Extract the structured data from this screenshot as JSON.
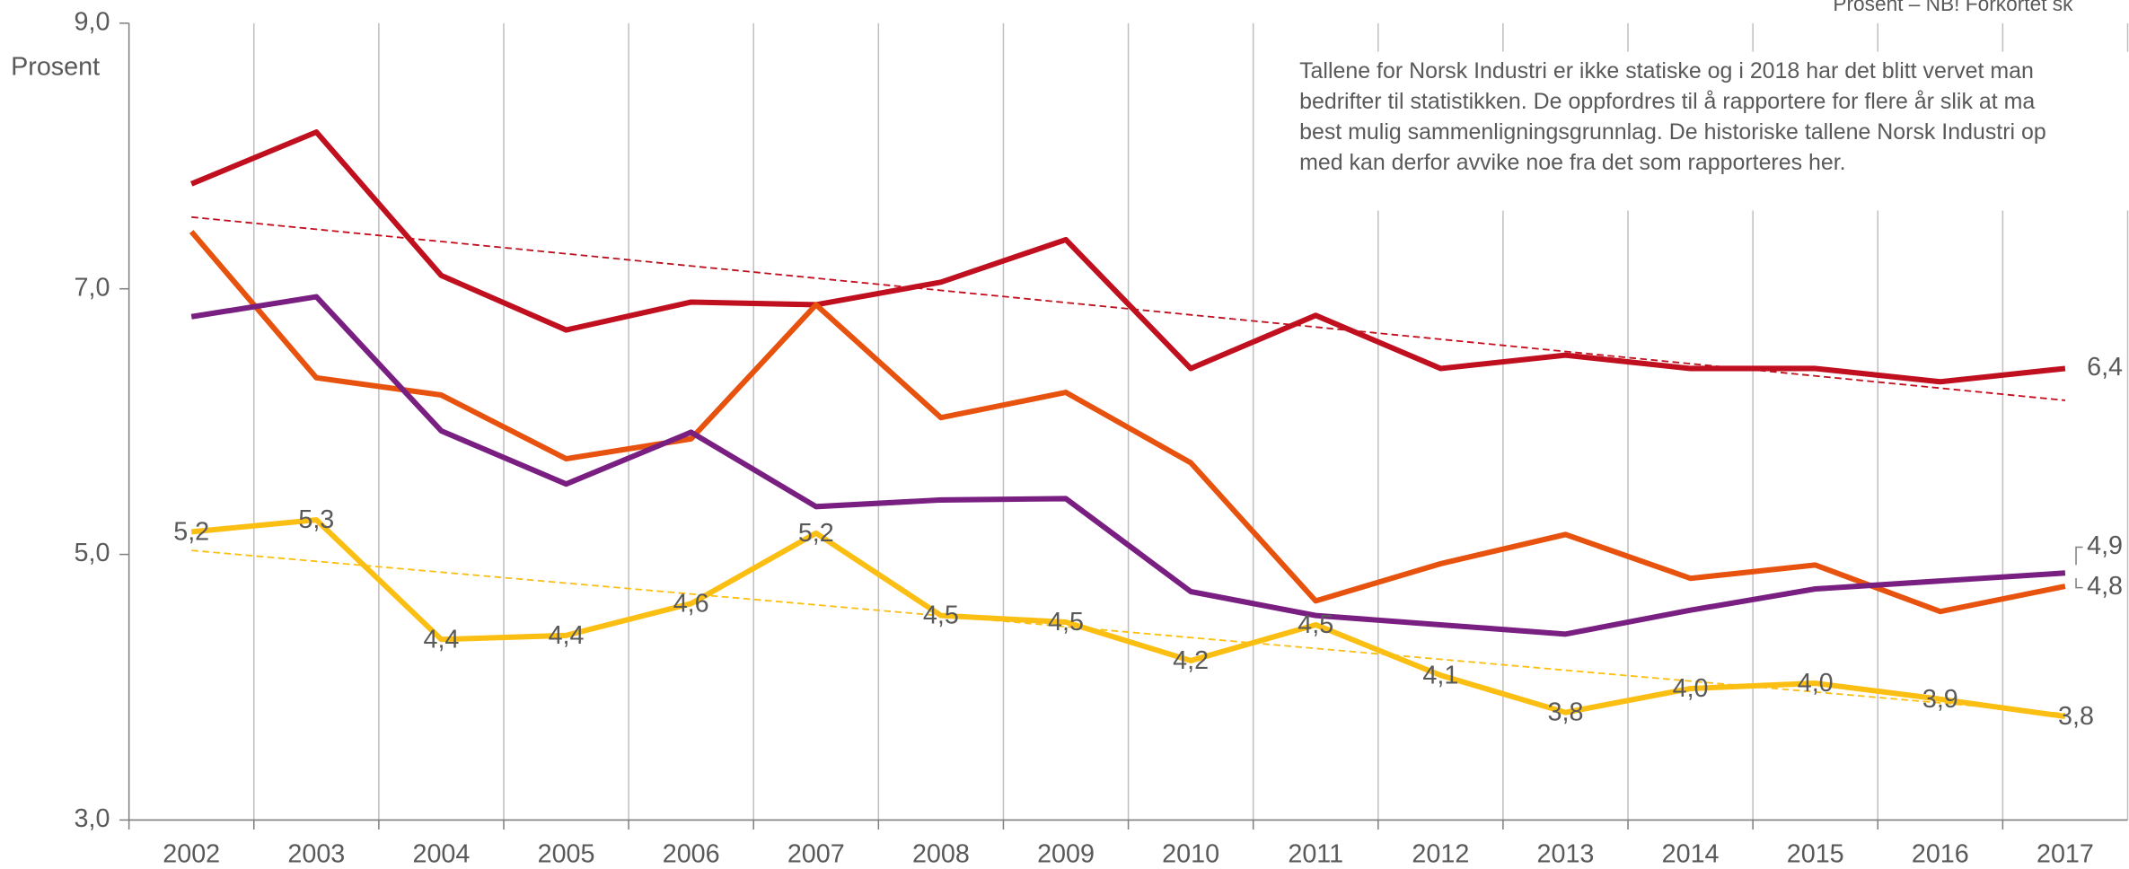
{
  "chart_data": {
    "type": "line",
    "y_label": "Prosent",
    "note_top": "Prosent – NB! Forkortet sk",
    "annotation": [
      "Tallene for Norsk Industri er ikke statiske og i 2018 har det blitt vervet man",
      "bedrifter til statistikken. De oppfordres til å rapportere for flere år slik at ma",
      "best mulig sammenligningsgrunnlag. De historiske tallene Norsk Industri op",
      "med kan derfor avvike noe fra det som rapporteres her."
    ],
    "categories": [
      "2002",
      "2003",
      "2004",
      "2005",
      "2006",
      "2007",
      "2008",
      "2009",
      "2010",
      "2011",
      "2012",
      "2013",
      "2014",
      "2015",
      "2016",
      "2017"
    ],
    "ylim": [
      3,
      9
    ],
    "yticks": [
      {
        "value": 3,
        "label": "3,0"
      },
      {
        "value": 5,
        "label": "5,0"
      },
      {
        "value": 7,
        "label": "7,0"
      },
      {
        "value": 9,
        "label": "9,0"
      }
    ],
    "grid": true,
    "series": [
      {
        "color": "#c00f1e",
        "values": [
          7.79,
          8.18,
          7.1,
          6.69,
          6.9,
          6.88,
          7.05,
          7.37,
          6.4,
          6.8,
          6.4,
          6.5,
          6.4,
          6.4,
          6.3,
          6.4
        ],
        "value_labels": [
          null,
          null,
          null,
          null,
          null,
          null,
          null,
          null,
          null,
          null,
          null,
          null,
          null,
          null,
          null,
          "6,4"
        ]
      },
      {
        "color": "#e8520f",
        "values": [
          7.43,
          6.33,
          6.2,
          5.72,
          5.87,
          6.88,
          6.03,
          6.22,
          5.69,
          4.65,
          4.93,
          5.15,
          4.82,
          4.92,
          4.57,
          4.76
        ],
        "value_labels": [
          null,
          null,
          null,
          null,
          null,
          null,
          null,
          null,
          null,
          null,
          null,
          null,
          null,
          null,
          null,
          "4,8"
        ]
      },
      {
        "color": "#7a1f82",
        "values": [
          6.79,
          6.94,
          5.93,
          5.53,
          5.92,
          5.36,
          5.41,
          5.42,
          4.72,
          4.54,
          4.47,
          4.4,
          4.58,
          4.74,
          4.8,
          4.86
        ],
        "value_labels": [
          null,
          null,
          null,
          null,
          null,
          null,
          null,
          null,
          null,
          null,
          null,
          null,
          null,
          null,
          null,
          "4,9"
        ]
      },
      {
        "color": "#fbbf14",
        "values": [
          5.17,
          5.26,
          4.36,
          4.39,
          4.63,
          5.16,
          4.54,
          4.49,
          4.2,
          4.47,
          4.09,
          3.81,
          3.99,
          4.03,
          3.91,
          3.78
        ],
        "value_labels": [
          "5,2",
          "5,3",
          "4,4",
          "4,4",
          "4,6",
          "5,2",
          "4,5",
          "4,5",
          "4,2",
          "4,5",
          "4,1",
          "3,8",
          "4,0",
          "4,0",
          "3,9",
          "3,8"
        ]
      }
    ],
    "trendlines": [
      {
        "color": "#c00f1e",
        "start": 7.54,
        "end": 6.16
      },
      {
        "color": "#fbbf14",
        "start": 5.03,
        "end": 3.8
      }
    ]
  }
}
